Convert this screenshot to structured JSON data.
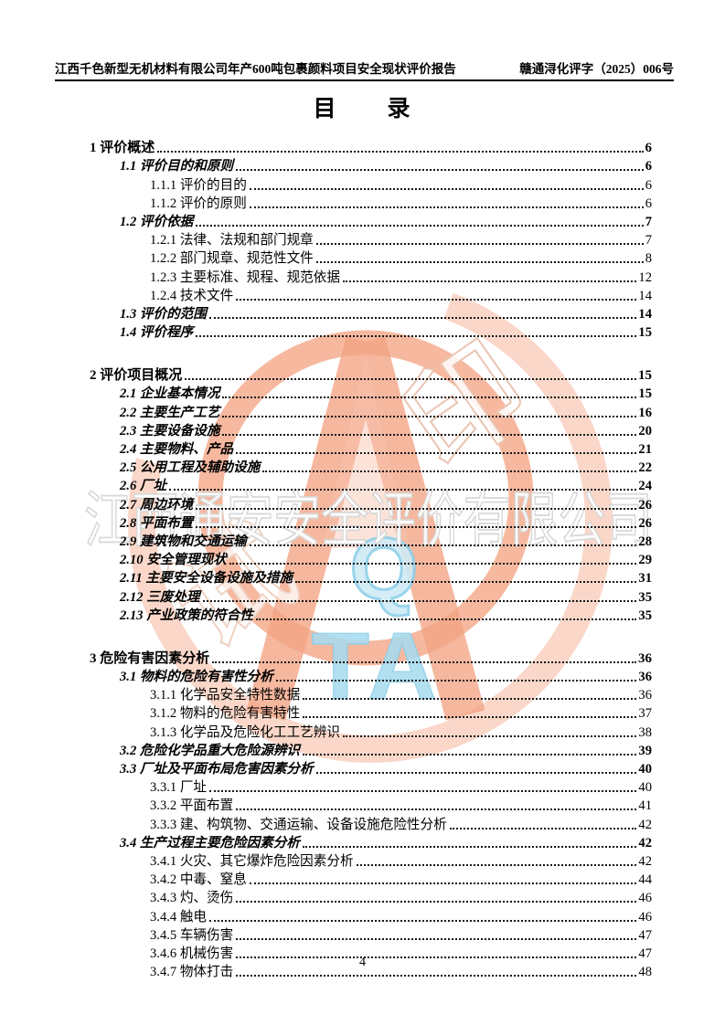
{
  "header": {
    "report_title": "江西千色新型无机材料有限公司年产600吨包裹颜料项目安全现状评价报告",
    "doc_number": "赣通浔化评字（2025）006号"
  },
  "title": "目　　录",
  "toc": {
    "entries": [
      {
        "level": 1,
        "label": "1 评价概述",
        "page": "6",
        "gap_before": false
      },
      {
        "level": 2,
        "label": "1.1 评价目的和原则",
        "page": "6",
        "gap_before": false
      },
      {
        "level": 3,
        "label": "1.1.1 评价的目的",
        "page": "6",
        "gap_before": false
      },
      {
        "level": 3,
        "label": "1.1.2 评价的原则",
        "page": "6",
        "gap_before": false
      },
      {
        "level": 2,
        "label": "1.2 评价依据",
        "page": "7",
        "gap_before": false
      },
      {
        "level": 3,
        "label": "1.2.1 法律、法规和部门规章",
        "page": "7",
        "gap_before": false
      },
      {
        "level": 3,
        "label": "1.2.2 部门规章、规范性文件",
        "page": "8",
        "gap_before": false
      },
      {
        "level": 3,
        "label": "1.2.3 主要标准、规程、规范依据",
        "page": "12",
        "gap_before": false
      },
      {
        "level": 3,
        "label": "1.2.4 技术文件",
        "page": "14",
        "gap_before": false
      },
      {
        "level": 2,
        "label": "1.3 评价的范围",
        "page": "14",
        "gap_before": false
      },
      {
        "level": 2,
        "label": "1.4 评价程序",
        "page": "15",
        "gap_before": false
      },
      {
        "level": 1,
        "label": "2 评价项目概况",
        "page": "15",
        "gap_before": true
      },
      {
        "level": 2,
        "label": "2.1 企业基本情况",
        "page": "15",
        "gap_before": false
      },
      {
        "level": 2,
        "label": "2.2 主要生产工艺",
        "page": "16",
        "gap_before": false
      },
      {
        "level": 2,
        "label": "2.3 主要设备设施",
        "page": "20",
        "gap_before": false
      },
      {
        "level": 2,
        "label": "2.4 主要物料、产品",
        "page": "21",
        "gap_before": false
      },
      {
        "level": 2,
        "label": "2.5 公用工程及辅助设施",
        "page": "22",
        "gap_before": false
      },
      {
        "level": 2,
        "label": "2.6 厂址",
        "page": "24",
        "gap_before": false
      },
      {
        "level": 2,
        "label": "2.7 周边环境",
        "page": "26",
        "gap_before": false
      },
      {
        "level": 2,
        "label": "2.8 平面布置",
        "page": "26",
        "gap_before": false
      },
      {
        "level": 2,
        "label": "2.9 建筑物和交通运输",
        "page": "28",
        "gap_before": false
      },
      {
        "level": 2,
        "label": "2.10 安全管理现状",
        "page": "29",
        "gap_before": false
      },
      {
        "level": 2,
        "label": "2.11 主要安全设备设施及措施",
        "page": "31",
        "gap_before": false
      },
      {
        "level": 2,
        "label": "2.12 三废处理",
        "page": "35",
        "gap_before": false
      },
      {
        "level": 2,
        "label": "2.13 产业政策的符合性",
        "page": "35",
        "gap_before": false
      },
      {
        "level": 1,
        "label": "3 危险有害因素分析",
        "page": "36",
        "gap_before": true
      },
      {
        "level": 2,
        "label": "3.1 物料的危险有害性分析",
        "page": "36",
        "gap_before": false
      },
      {
        "level": 3,
        "label": "3.1.1 化学品安全特性数据",
        "page": "36",
        "gap_before": false
      },
      {
        "level": 3,
        "label": "3.1.2 物料的危险有害特性",
        "page": "37",
        "gap_before": false
      },
      {
        "level": 3,
        "label": "3.1.3 化学品及危险化工工艺辨识",
        "page": "38",
        "gap_before": false
      },
      {
        "level": 2,
        "label": "3.2 危险化学品重大危险源辨识",
        "page": "39",
        "gap_before": false
      },
      {
        "level": 2,
        "label": "3.3 厂址及平面布局危害因素分析",
        "page": "40",
        "gap_before": false
      },
      {
        "level": 3,
        "label": "3.3.1 厂址",
        "page": "40",
        "gap_before": false
      },
      {
        "level": 3,
        "label": "3.3.2 平面布置",
        "page": "41",
        "gap_before": false
      },
      {
        "level": 3,
        "label": "3.3.3 建、构筑物、交通运输、设备设施危险性分析",
        "page": "42",
        "gap_before": false
      },
      {
        "level": 2,
        "label": "3.4 生产过程主要危险因素分析",
        "page": "42",
        "gap_before": false
      },
      {
        "level": 3,
        "label": "3.4.1 火灾、其它爆炸危险因素分析",
        "page": "42",
        "gap_before": false
      },
      {
        "level": 3,
        "label": "3.4.2 中毒、窒息",
        "page": "44",
        "gap_before": false
      },
      {
        "level": 3,
        "label": "3.4.3 灼、烫伤",
        "page": "46",
        "gap_before": false
      },
      {
        "level": 3,
        "label": "3.4.4 触电",
        "page": "46",
        "gap_before": false
      },
      {
        "level": 3,
        "label": "3.4.5 车辆伤害",
        "page": "47",
        "gap_before": false
      },
      {
        "level": 3,
        "label": "3.4.6 机械伤害",
        "page": "47",
        "gap_before": false
      },
      {
        "level": 3,
        "label": "3.4.7 物体打击",
        "page": "48",
        "gap_before": false
      }
    ]
  },
  "footer": {
    "page_number": "4"
  },
  "watermark": {
    "company_text": "江西通安安全评价有限公司",
    "logo_letter_q": "Q",
    "logo_letters_ta": "TA",
    "stamp_char_top": "印",
    "stamp_char_bottom": "试",
    "colors": {
      "orange": "#F3A484",
      "orange_light": "#F6B297",
      "blue": "#9ED7EF",
      "outline_gray": "#D8D8D8"
    }
  }
}
